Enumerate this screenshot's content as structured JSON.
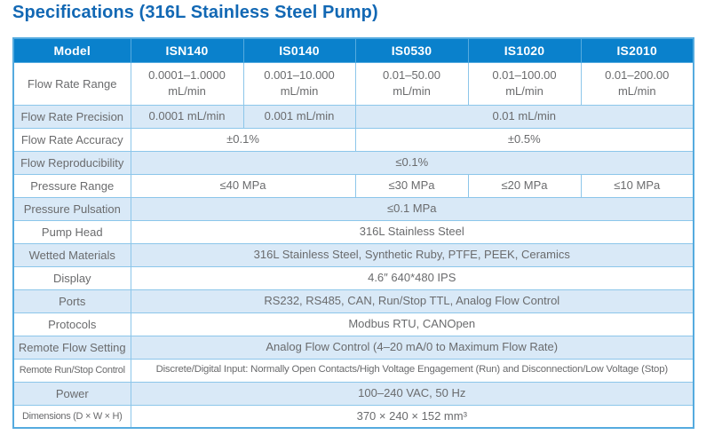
{
  "title": "Specifications (316L Stainless Steel Pump)",
  "colors": {
    "title_blue": "#1268b4",
    "header_bg": "#0a81cc",
    "header_text": "#ffffff",
    "alt_row_bg": "#d9e9f7",
    "border_inner": "#8cc6ea",
    "border_outer": "#55abdf",
    "body_text": "#6a6b6d"
  },
  "table": {
    "header": [
      "Model",
      "ISN140",
      "IS0140",
      "IS0530",
      "IS1020",
      "IS2010"
    ],
    "rows": [
      {
        "label": "Flow Rate Range",
        "cells": [
          {
            "text": "0.0001–1.0000\nmL/min",
            "span": 1
          },
          {
            "text": "0.001–10.000\nmL/min",
            "span": 1
          },
          {
            "text": "0.01–50.00\nmL/min",
            "span": 1
          },
          {
            "text": "0.01–100.00\nmL/min",
            "span": 1
          },
          {
            "text": "0.01–200.00\nmL/min",
            "span": 1
          }
        ]
      },
      {
        "label": "Flow Rate Precision",
        "cells": [
          {
            "text": "0.0001 mL/min",
            "span": 1
          },
          {
            "text": "0.001 mL/min",
            "span": 1
          },
          {
            "text": "0.01 mL/min",
            "span": 3
          }
        ]
      },
      {
        "label": "Flow Rate Accuracy",
        "cells": [
          {
            "text": "±0.1%",
            "span": 2
          },
          {
            "text": "±0.5%",
            "span": 3
          }
        ]
      },
      {
        "label": "Flow Reproducibility",
        "cells": [
          {
            "text": "≤0.1%",
            "span": 5
          }
        ]
      },
      {
        "label": "Pressure Range",
        "cells": [
          {
            "text": "≤40 MPa",
            "span": 2
          },
          {
            "text": "≤30 MPa",
            "span": 1
          },
          {
            "text": "≤20 MPa",
            "span": 1
          },
          {
            "text": "≤10 MPa",
            "span": 1
          }
        ]
      },
      {
        "label": "Pressure Pulsation",
        "cells": [
          {
            "text": "≤0.1 MPa",
            "span": 5
          }
        ]
      },
      {
        "label": "Pump Head",
        "cells": [
          {
            "text": "316L Stainless Steel",
            "span": 5
          }
        ]
      },
      {
        "label": "Wetted Materials",
        "cells": [
          {
            "text": "316L Stainless Steel, Synthetic Ruby, PTFE, PEEK, Ceramics",
            "span": 5
          }
        ]
      },
      {
        "label": "Display",
        "cells": [
          {
            "text": "4.6″  640*480 IPS",
            "span": 5
          }
        ]
      },
      {
        "label": "Ports",
        "cells": [
          {
            "text": "RS232, RS485, CAN, Run/Stop TTL, Analog Flow Control",
            "span": 5
          }
        ]
      },
      {
        "label": "Protocols",
        "cells": [
          {
            "text": "Modbus RTU, CANOpen",
            "span": 5
          }
        ]
      },
      {
        "label": "Remote Flow Setting",
        "cells": [
          {
            "text": "Analog Flow Control (4–20 mA/0 to Maximum Flow Rate)",
            "span": 5
          }
        ]
      },
      {
        "label": "Remote Run/Stop Control",
        "cells": [
          {
            "text": "Discrete/Digital Input: Normally Open Contacts/High Voltage Engagement (Run) and Disconnection/Low Voltage (Stop)",
            "span": 5
          }
        ]
      },
      {
        "label": "Power",
        "cells": [
          {
            "text": "100–240 VAC, 50 Hz",
            "span": 5
          }
        ]
      },
      {
        "label": "Dimensions (D × W × H)",
        "cells": [
          {
            "text": "370 × 240 × 152 mm³",
            "span": 5
          }
        ]
      }
    ]
  }
}
